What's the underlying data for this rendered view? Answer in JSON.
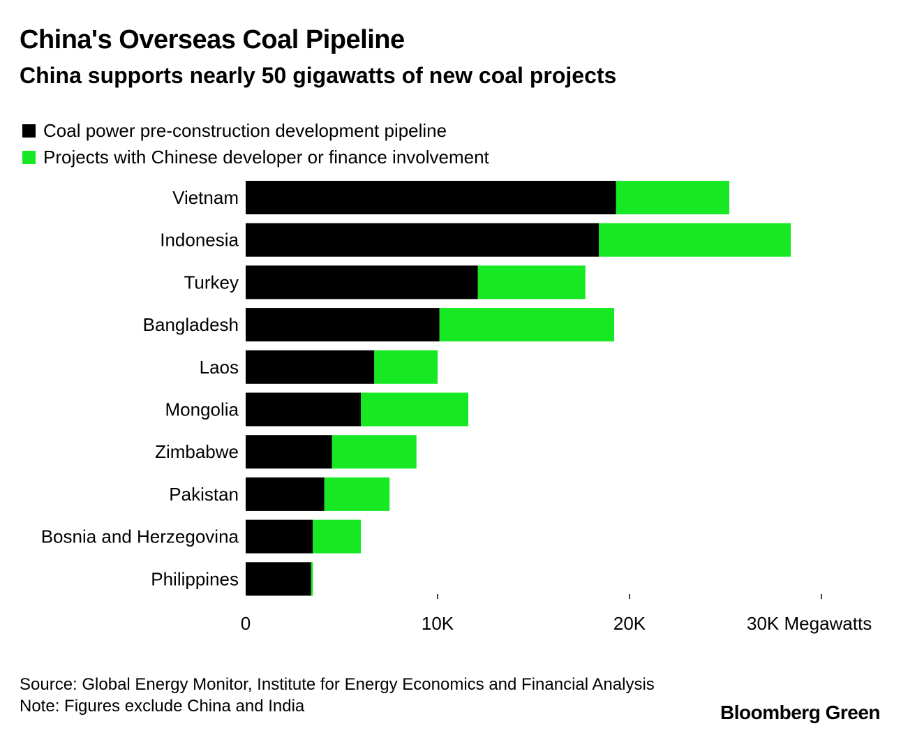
{
  "header": {
    "title": "China's Overseas Coal Pipeline",
    "subtitle": "China supports nearly 50 gigawatts of new coal projects"
  },
  "footer": {
    "source": "Source: Global Energy Monitor, Institute for Energy Economics and Financial Analysis",
    "note": "Note: Figures exclude China and India",
    "brand": "Bloomberg Green"
  },
  "chart_data": {
    "type": "bar",
    "orientation": "horizontal",
    "stacked": true,
    "title": "China's Overseas Coal Pipeline",
    "subtitle": "China supports nearly 50 gigawatts of new coal projects",
    "xlabel": "Megawatts",
    "ylabel": "",
    "xlim": [
      0,
      30000
    ],
    "x_ticks": [
      0,
      10000,
      20000,
      30000
    ],
    "x_tick_labels": [
      "0",
      "10K",
      "20K",
      "30K Megawatts"
    ],
    "grid": false,
    "legend_position": "top-left",
    "categories": [
      "Vietnam",
      "Indonesia",
      "Turkey",
      "Bangladesh",
      "Laos",
      "Mongolia",
      "Zimbabwe",
      "Pakistan",
      "Bosnia and Herzegovina",
      "Philippines"
    ],
    "series": [
      {
        "name": "Coal power pre-construction development pipeline",
        "color": "#000000",
        "values": [
          19300,
          18400,
          12100,
          10100,
          6700,
          6000,
          4500,
          4100,
          3500,
          3400
        ]
      },
      {
        "name": "Projects with Chinese developer or finance involvement",
        "color": "#16e923",
        "values": [
          5900,
          10000,
          5600,
          9100,
          3300,
          5600,
          4400,
          3400,
          2500,
          100
        ]
      }
    ]
  }
}
